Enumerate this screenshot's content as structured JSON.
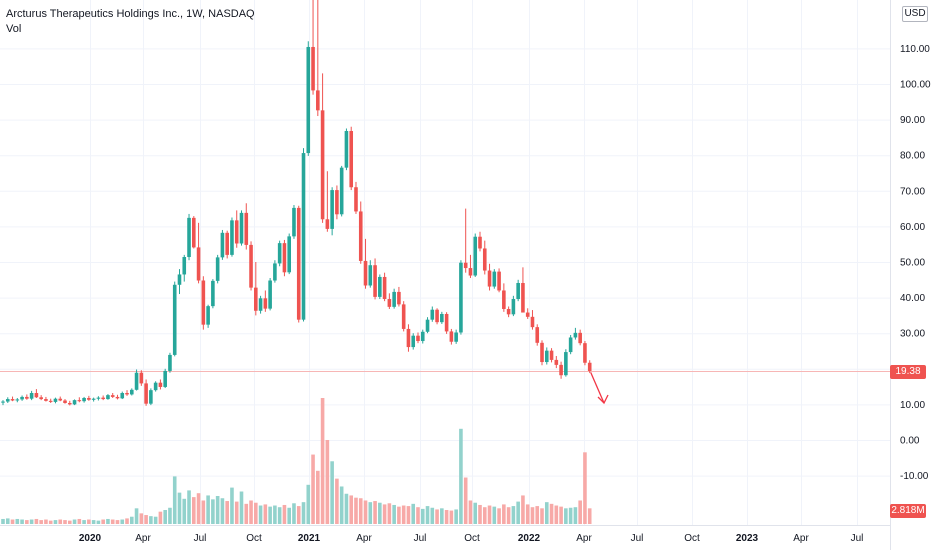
{
  "legend": {
    "symbol_line": "Arcturus Therapeutics Holdings Inc., 1W, NASDAQ",
    "volume_label": "Vol"
  },
  "currency_button": "USD",
  "last_price_tag": "19.38",
  "last_volume_tag": "2.818M",
  "colors": {
    "up": "#26a69a",
    "down": "#ef5350",
    "up_vol": "#92d2cc",
    "down_vol": "#f7a9a7",
    "arrow": "#f23645",
    "price_line": "#f7b6b5"
  },
  "chart_data": {
    "type": "candlestick",
    "title": "Arcturus Therapeutics Holdings Inc., 1W, NASDAQ",
    "price_axis": {
      "ticks": [
        "USD",
        "110.00",
        "100.00",
        "90.00",
        "80.00",
        "70.00",
        "60.00",
        "50.00",
        "40.00",
        "30.00",
        "20.00",
        "10.00",
        "0.00",
        "-10.00"
      ],
      "values": [
        110,
        100,
        90,
        80,
        70,
        60,
        50,
        40,
        30,
        20,
        10,
        0,
        -10
      ],
      "ylim": [
        -22,
        124
      ]
    },
    "time_axis": {
      "labels": [
        "2020",
        "Apr",
        "Jul",
        "Oct",
        "2021",
        "Apr",
        "Jul",
        "Oct",
        "2022",
        "Apr",
        "Jul",
        "Oct",
        "2023",
        "Apr",
        "Jul"
      ],
      "bold": [
        true,
        false,
        false,
        false,
        true,
        false,
        false,
        false,
        true,
        false,
        false,
        false,
        true,
        false,
        false
      ]
    },
    "last_price": 19.38,
    "last_volume": "2.818M",
    "series": [
      {
        "name": "Price",
        "values": [
          [
            10.5,
            11.2,
            9.8,
            10.8
          ],
          [
            10.8,
            12.0,
            10.4,
            11.5
          ],
          [
            11.5,
            12.2,
            10.9,
            11.1
          ],
          [
            11.1,
            11.8,
            10.6,
            11.4
          ],
          [
            11.4,
            12.5,
            11.0,
            12.1
          ],
          [
            12.1,
            12.8,
            11.3,
            11.6
          ],
          [
            11.6,
            13.8,
            11.2,
            13.2
          ],
          [
            13.2,
            14.3,
            11.8,
            12.0
          ],
          [
            12.0,
            12.6,
            11.2,
            11.5
          ],
          [
            11.5,
            12.1,
            10.8,
            11.0
          ],
          [
            11.0,
            11.6,
            10.4,
            10.7
          ],
          [
            10.7,
            11.9,
            10.3,
            11.6
          ],
          [
            11.6,
            12.2,
            10.9,
            11.1
          ],
          [
            11.1,
            11.5,
            10.2,
            10.4
          ],
          [
            10.4,
            11.0,
            9.7,
            10.0
          ],
          [
            10.0,
            11.4,
            9.8,
            11.2
          ],
          [
            11.2,
            12.0,
            10.6,
            10.9
          ],
          [
            10.9,
            12.1,
            10.5,
            11.8
          ],
          [
            11.8,
            12.4,
            11.0,
            11.3
          ],
          [
            11.3,
            11.9,
            10.8,
            11.6
          ],
          [
            11.6,
            12.3,
            11.1,
            11.9
          ],
          [
            11.9,
            12.5,
            11.2,
            11.5
          ],
          [
            11.5,
            12.9,
            11.3,
            12.6
          ],
          [
            12.6,
            13.2,
            11.8,
            12.1
          ],
          [
            12.1,
            12.7,
            11.4,
            11.7
          ],
          [
            11.7,
            13.6,
            11.5,
            13.2
          ],
          [
            13.2,
            14.0,
            12.4,
            12.8
          ],
          [
            12.8,
            14.5,
            12.5,
            14.1
          ],
          [
            14.1,
            19.8,
            13.9,
            18.9
          ],
          [
            18.9,
            19.6,
            15.2,
            15.9
          ],
          [
            15.9,
            17.0,
            9.6,
            10.2
          ],
          [
            10.2,
            14.5,
            9.8,
            14.0
          ],
          [
            14.0,
            16.5,
            13.6,
            16.1
          ],
          [
            16.1,
            17.0,
            14.2,
            14.9
          ],
          [
            14.9,
            20.0,
            14.6,
            19.4
          ],
          [
            19.4,
            24.5,
            18.9,
            23.9
          ],
          [
            23.9,
            44.5,
            23.5,
            43.6
          ],
          [
            43.6,
            48.0,
            41.0,
            46.5
          ],
          [
            46.5,
            52.0,
            44.5,
            51.4
          ],
          [
            51.4,
            63.5,
            50.5,
            62.4
          ],
          [
            62.4,
            62.9,
            53.8,
            54.1
          ],
          [
            54.1,
            61.0,
            44.0,
            44.8
          ],
          [
            44.8,
            46.0,
            31.0,
            32.4
          ],
          [
            32.4,
            38.0,
            31.5,
            37.6
          ],
          [
            37.6,
            45.2,
            37.0,
            44.7
          ],
          [
            44.7,
            52.0,
            44.0,
            51.3
          ],
          [
            51.3,
            59.0,
            50.6,
            58.2
          ],
          [
            58.2,
            58.8,
            51.0,
            52.0
          ],
          [
            52.0,
            62.5,
            51.5,
            61.7
          ],
          [
            61.7,
            64.5,
            54.0,
            55.2
          ],
          [
            55.2,
            64.5,
            54.6,
            63.8
          ],
          [
            63.8,
            66.5,
            53.5,
            54.8
          ],
          [
            54.8,
            55.8,
            42.0,
            42.8
          ],
          [
            42.8,
            50.0,
            35.0,
            36.3
          ],
          [
            36.3,
            40.5,
            35.5,
            39.8
          ],
          [
            39.8,
            42.0,
            36.0,
            36.9
          ],
          [
            36.9,
            45.5,
            36.4,
            44.8
          ],
          [
            44.8,
            50.5,
            44.2,
            49.6
          ],
          [
            49.6,
            56.0,
            48.8,
            55.3
          ],
          [
            55.3,
            56.2,
            46.0,
            47.1
          ],
          [
            47.1,
            58.0,
            46.6,
            57.2
          ],
          [
            57.2,
            66.0,
            56.5,
            65.2
          ],
          [
            65.2,
            65.8,
            33.0,
            33.8
          ],
          [
            33.8,
            82.0,
            33.3,
            80.6
          ],
          [
            80.6,
            112.0,
            79.8,
            110.4
          ],
          [
            110.4,
            126.0,
            97.0,
            98.2
          ],
          [
            98.2,
            124.0,
            91.0,
            92.6
          ],
          [
            92.6,
            103.0,
            61.0,
            62.0
          ],
          [
            62.0,
            75.5,
            58.5,
            59.3
          ],
          [
            59.3,
            71.0,
            57.5,
            70.2
          ],
          [
            70.2,
            71.5,
            62.0,
            63.4
          ],
          [
            63.4,
            77.0,
            62.8,
            76.5
          ],
          [
            76.5,
            87.5,
            75.8,
            86.8
          ],
          [
            86.8,
            88.0,
            70.2,
            71.0
          ],
          [
            71.0,
            72.5,
            63.5,
            64.2
          ],
          [
            64.2,
            67.0,
            49.5,
            50.3
          ],
          [
            50.3,
            56.5,
            42.5,
            43.4
          ],
          [
            43.4,
            50.5,
            42.8,
            49.1
          ],
          [
            49.1,
            51.0,
            39.5,
            40.2
          ],
          [
            40.2,
            46.5,
            39.6,
            45.8
          ],
          [
            45.8,
            47.0,
            39.0,
            39.6
          ],
          [
            39.6,
            41.2,
            36.8,
            37.4
          ],
          [
            37.4,
            42.5,
            36.9,
            41.6
          ],
          [
            41.6,
            43.0,
            37.5,
            38.1
          ],
          [
            38.1,
            39.0,
            30.5,
            31.2
          ],
          [
            31.2,
            32.5,
            24.8,
            26.1
          ],
          [
            26.1,
            30.0,
            25.4,
            29.3
          ],
          [
            29.3,
            30.2,
            27.2,
            27.8
          ],
          [
            27.8,
            31.0,
            27.1,
            30.4
          ],
          [
            30.4,
            34.5,
            30.0,
            33.8
          ],
          [
            33.8,
            37.5,
            33.2,
            36.6
          ],
          [
            36.6,
            37.0,
            32.5,
            33.1
          ],
          [
            33.1,
            36.0,
            32.6,
            35.4
          ],
          [
            35.4,
            35.9,
            29.8,
            30.5
          ],
          [
            30.5,
            31.2,
            26.8,
            27.6
          ],
          [
            27.6,
            31.0,
            27.0,
            30.2
          ],
          [
            30.2,
            50.5,
            29.6,
            49.8
          ],
          [
            49.8,
            65.0,
            47.0,
            48.3
          ],
          [
            48.3,
            52.0,
            45.5,
            46.2
          ],
          [
            46.2,
            58.0,
            45.8,
            57.1
          ],
          [
            57.1,
            58.5,
            53.0,
            53.8
          ],
          [
            53.8,
            56.0,
            46.5,
            47.6
          ],
          [
            47.6,
            49.5,
            42.0,
            43.1
          ],
          [
            43.1,
            48.0,
            42.5,
            47.3
          ],
          [
            47.3,
            48.2,
            41.5,
            42.0
          ],
          [
            42.0,
            44.0,
            36.0,
            36.8
          ],
          [
            36.8,
            37.5,
            34.5,
            35.3
          ],
          [
            35.3,
            40.5,
            34.8,
            39.6
          ],
          [
            39.6,
            45.0,
            39.0,
            44.1
          ],
          [
            44.1,
            48.5,
            43.5,
            35.8
          ],
          [
            35.8,
            37.0,
            34.0,
            34.6
          ],
          [
            34.6,
            36.5,
            31.0,
            31.7
          ],
          [
            31.7,
            32.5,
            26.5,
            27.3
          ],
          [
            27.3,
            28.0,
            21.0,
            21.9
          ],
          [
            21.9,
            26.0,
            21.2,
            25.1
          ],
          [
            25.1,
            25.8,
            21.8,
            22.5
          ],
          [
            22.5,
            23.6,
            20.2,
            21.1
          ],
          [
            21.1,
            22.0,
            17.2,
            18.2
          ],
          [
            18.2,
            25.5,
            17.8,
            24.7
          ],
          [
            24.7,
            29.5,
            24.1,
            28.8
          ],
          [
            28.8,
            31.5,
            28.2,
            30.1
          ],
          [
            30.1,
            31.0,
            26.6,
            27.2
          ],
          [
            27.2,
            27.8,
            21.0,
            21.7
          ],
          [
            21.7,
            22.4,
            18.8,
            19.38
          ]
        ]
      },
      {
        "name": "Vol",
        "values": [
          0.9,
          1.0,
          0.8,
          0.9,
          0.8,
          0.7,
          0.8,
          0.9,
          0.7,
          0.8,
          0.6,
          0.7,
          0.8,
          0.7,
          0.6,
          0.8,
          0.9,
          0.7,
          0.8,
          0.7,
          0.6,
          0.8,
          0.9,
          0.8,
          0.7,
          0.8,
          1.0,
          1.3,
          2.8,
          1.9,
          1.6,
          1.4,
          1.3,
          2.2,
          2.5,
          2.9,
          8.5,
          5.6,
          4.5,
          6.0,
          4.8,
          5.5,
          4.2,
          5.1,
          4.4,
          5.0,
          4.6,
          4.1,
          6.5,
          4.0,
          5.8,
          3.6,
          4.2,
          3.8,
          3.3,
          3.5,
          3.1,
          3.3,
          3.0,
          3.4,
          2.9,
          3.7,
          3.2,
          3.9,
          7.0,
          12.4,
          9.5,
          22.5,
          15.0,
          11.2,
          8.1,
          6.7,
          5.4,
          5.1,
          4.7,
          4.6,
          4.2,
          3.9,
          4.1,
          3.8,
          3.5,
          3.7,
          3.4,
          3.1,
          3.3,
          3.2,
          3.6,
          3.0,
          2.7,
          3.2,
          2.9,
          2.6,
          2.8,
          2.5,
          2.4,
          2.6,
          17.0,
          8.3,
          4.2,
          3.8,
          3.4,
          3.0,
          3.3,
          3.1,
          2.8,
          3.5,
          3.0,
          3.2,
          4.0,
          5.1,
          3.5,
          3.0,
          3.2,
          2.8,
          3.9,
          3.6,
          3.3,
          3.1,
          2.8,
          2.9,
          3.0,
          4.2,
          12.8,
          2.8
        ]
      }
    ]
  }
}
